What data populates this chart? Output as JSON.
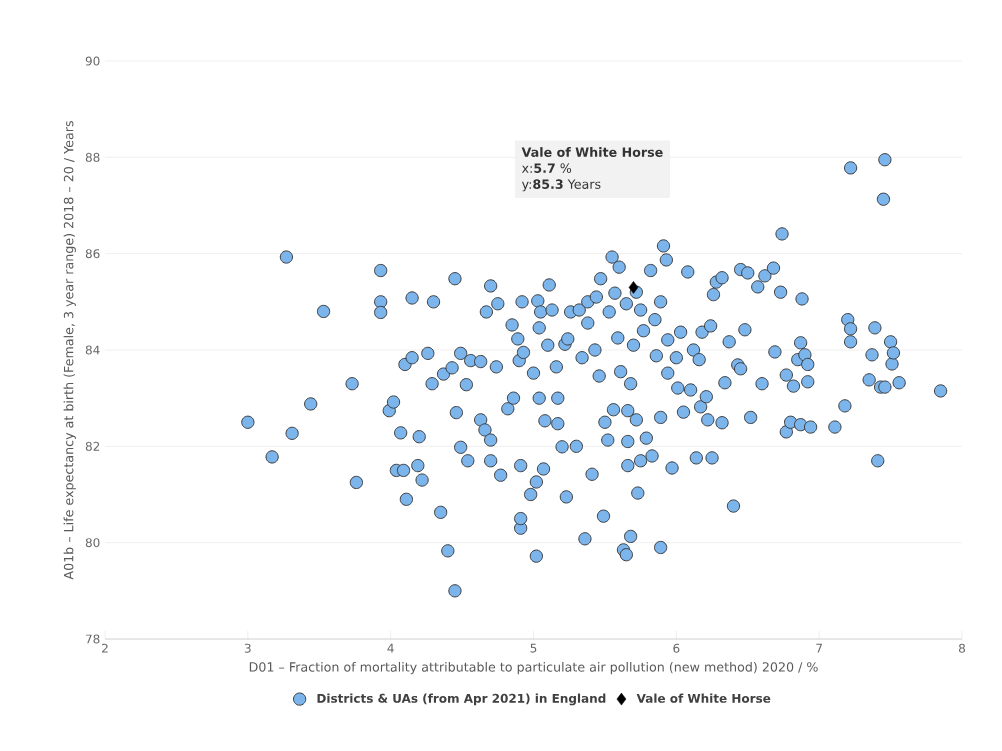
{
  "chart_data": {
    "type": "scatter",
    "xlabel": "D01 – Fraction of mortality attributable to particulate air pollution (new method) 2020 / %",
    "ylabel": "A01b – Life expectancy at birth (Female, 3 year range) 2018 – 20 / Years",
    "xlim": [
      2,
      8
    ],
    "xticks": [
      2,
      3,
      4,
      5,
      6,
      7,
      8
    ],
    "ylim": [
      78,
      90
    ],
    "yticks": [
      78,
      80,
      82,
      84,
      86,
      88,
      90
    ],
    "grid": "y",
    "legend": "bottom",
    "series": [
      {
        "name": "Districts & UAs (from Apr 2021) in England",
        "color": "#7cb5ec",
        "marker": "circle",
        "x": [
          3.0,
          3.17,
          3.27,
          3.31,
          3.44,
          3.53,
          3.73,
          3.76,
          3.93,
          3.93,
          3.93,
          3.99,
          4.02,
          4.04,
          4.07,
          4.09,
          4.1,
          4.11,
          4.15,
          4.15,
          4.2,
          4.19,
          4.22,
          4.26,
          4.3,
          4.29,
          4.35,
          4.37,
          4.4,
          4.43,
          4.45,
          4.45,
          4.46,
          4.49,
          4.49,
          4.53,
          4.54,
          4.56,
          4.63,
          4.63,
          4.66,
          4.67,
          4.7,
          4.7,
          4.7,
          4.74,
          4.75,
          4.77,
          4.82,
          4.85,
          4.86,
          4.89,
          4.9,
          4.91,
          4.91,
          4.91,
          4.92,
          4.93,
          4.98,
          5.0,
          5.02,
          5.03,
          5.02,
          5.04,
          5.04,
          5.05,
          5.07,
          5.08,
          5.1,
          5.11,
          5.13,
          5.16,
          5.17,
          5.17,
          5.2,
          5.22,
          5.23,
          5.24,
          5.26,
          5.3,
          5.32,
          5.34,
          5.36,
          5.38,
          5.38,
          5.41,
          5.43,
          5.44,
          5.46,
          5.47,
          5.49,
          5.5,
          5.52,
          5.53,
          5.55,
          5.56,
          5.57,
          5.59,
          5.6,
          5.61,
          5.63,
          5.65,
          5.65,
          5.66,
          5.66,
          5.66,
          5.68,
          5.68,
          5.7,
          5.72,
          5.72,
          5.73,
          5.75,
          5.75,
          5.77,
          5.79,
          5.82,
          5.83,
          5.85,
          5.86,
          5.89,
          5.89,
          5.89,
          5.91,
          5.93,
          5.94,
          5.94,
          5.97,
          6.0,
          6.01,
          6.03,
          6.05,
          6.08,
          6.1,
          6.12,
          6.14,
          6.16,
          6.17,
          6.18,
          6.21,
          6.22,
          6.24,
          6.25,
          6.26,
          6.28,
          6.32,
          6.32,
          6.34,
          6.37,
          6.4,
          6.43,
          6.45,
          6.45,
          6.48,
          6.5,
          6.52,
          6.57,
          6.6,
          6.62,
          6.68,
          6.69,
          6.73,
          6.74,
          6.77,
          6.77,
          6.8,
          6.82,
          6.85,
          6.87,
          6.87,
          6.88,
          6.9,
          6.92,
          6.92,
          6.94,
          7.11,
          7.18,
          7.2,
          7.22,
          7.22,
          7.22,
          7.35,
          7.37,
          7.39,
          7.41,
          7.43,
          7.45,
          7.46,
          7.46,
          7.5,
          7.51,
          7.52,
          7.56,
          7.85
        ],
        "values": [
          82.5,
          81.78,
          85.93,
          82.27,
          82.88,
          84.8,
          83.3,
          81.25,
          85.65,
          85.0,
          84.78,
          82.74,
          82.92,
          81.5,
          82.28,
          81.5,
          83.7,
          80.9,
          83.84,
          85.08,
          82.2,
          81.6,
          81.3,
          83.93,
          85.0,
          83.3,
          80.63,
          83.5,
          79.83,
          83.63,
          85.48,
          79.0,
          82.7,
          83.93,
          81.98,
          83.28,
          81.7,
          83.78,
          83.76,
          82.55,
          82.34,
          84.79,
          85.33,
          81.7,
          82.13,
          83.65,
          84.96,
          81.4,
          82.78,
          84.52,
          83.0,
          84.23,
          83.78,
          81.6,
          80.3,
          80.5,
          85.0,
          83.95,
          81.0,
          83.52,
          81.26,
          85.02,
          79.72,
          84.46,
          83.0,
          84.79,
          81.53,
          82.53,
          84.1,
          85.35,
          84.83,
          83.65,
          83.0,
          82.47,
          81.99,
          84.12,
          80.95,
          84.23,
          84.79,
          82.0,
          84.83,
          83.84,
          80.08,
          85.0,
          84.56,
          81.42,
          84.0,
          85.1,
          83.46,
          85.48,
          80.55,
          82.5,
          82.13,
          84.79,
          85.93,
          82.76,
          85.18,
          84.25,
          85.72,
          83.55,
          79.85,
          79.75,
          84.96,
          81.6,
          82.1,
          82.74,
          83.3,
          80.13,
          84.1,
          82.55,
          85.2,
          81.03,
          81.7,
          84.83,
          84.4,
          82.17,
          85.65,
          81.8,
          84.63,
          83.88,
          82.6,
          79.9,
          85.0,
          86.16,
          85.87,
          84.21,
          83.52,
          81.55,
          83.84,
          83.21,
          84.37,
          82.71,
          85.62,
          83.17,
          84.0,
          81.76,
          83.8,
          82.82,
          84.37,
          83.03,
          82.55,
          84.5,
          81.76,
          85.15,
          85.41,
          85.5,
          82.49,
          83.32,
          84.17,
          80.76,
          83.69,
          85.67,
          83.61,
          84.42,
          85.6,
          82.6,
          85.31,
          83.3,
          85.54,
          85.7,
          83.96,
          85.2,
          86.41,
          83.48,
          82.3,
          82.5,
          83.25,
          83.8,
          82.45,
          84.15,
          85.06,
          83.9,
          83.7,
          83.34,
          82.4,
          82.4,
          82.84,
          84.63,
          84.44,
          84.17,
          87.78,
          83.38,
          83.9,
          84.46,
          81.7,
          83.23,
          87.13,
          83.23,
          87.95,
          84.17,
          83.71,
          83.94,
          83.32,
          83.15
        ]
      },
      {
        "name": "Vale of White Horse",
        "color": "#000000",
        "marker": "diamond",
        "x": [
          5.7
        ],
        "values": [
          85.3
        ]
      }
    ],
    "annotations": [
      "**Vale of White Horse**",
      "x:**5.7** %",
      "y:**85.3** Years"
    ]
  }
}
